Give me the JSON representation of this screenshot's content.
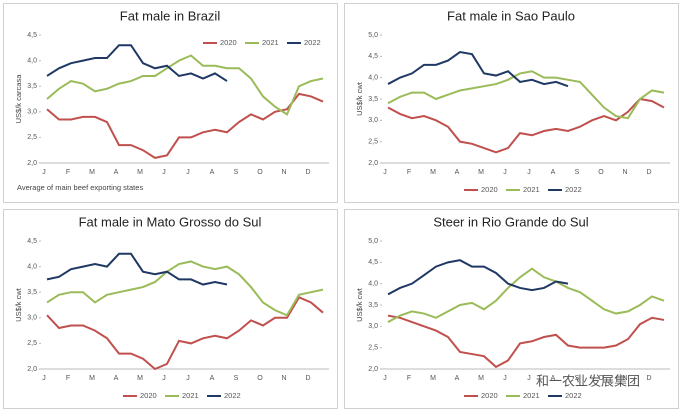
{
  "chart_data": [
    {
      "type": "line",
      "title": "Fat male in Brazil",
      "subtitle": "Average  of main beef exporting states",
      "y_label": "US$/k carcasa",
      "legend": "top",
      "categories": [
        "J",
        null,
        "F",
        null,
        "M",
        null,
        "A",
        null,
        "M",
        null,
        "J",
        null,
        "J",
        null,
        "A",
        null,
        "S",
        null,
        "O",
        null,
        "N",
        null,
        "D",
        null
      ],
      "ylim": [
        2.0,
        4.5
      ],
      "yticks": [
        {
          "value": 2.0,
          "label": "2,0"
        },
        {
          "value": 2.5,
          "label": "2,5"
        },
        {
          "value": 3.0,
          "label": "3,0"
        },
        {
          "value": 3.5,
          "label": "3,5"
        },
        {
          "value": 4.0,
          "label": "4,0"
        },
        {
          "value": 4.5,
          "label": "4,5"
        }
      ],
      "series": [
        {
          "name": "2020",
          "color": "#c0504d",
          "values": [
            3.05,
            2.85,
            2.85,
            2.9,
            2.9,
            2.8,
            2.35,
            2.35,
            2.25,
            2.1,
            2.15,
            2.5,
            2.5,
            2.6,
            2.65,
            2.6,
            2.8,
            2.95,
            2.85,
            3.0,
            3.05,
            3.35,
            3.3,
            3.2
          ]
        },
        {
          "name": "2021",
          "color": "#9bbb59",
          "values": [
            3.25,
            3.45,
            3.6,
            3.55,
            3.4,
            3.45,
            3.55,
            3.6,
            3.7,
            3.7,
            3.85,
            4.0,
            4.1,
            3.9,
            3.9,
            3.85,
            3.85,
            3.65,
            3.3,
            3.1,
            2.95,
            3.5,
            3.6,
            3.65
          ]
        },
        {
          "name": "2022",
          "color": "#1f3864",
          "values": [
            3.7,
            3.85,
            3.95,
            4.0,
            4.05,
            4.05,
            4.3,
            4.3,
            3.95,
            3.85,
            3.9,
            3.7,
            3.75,
            3.65,
            3.75,
            3.6,
            null,
            null,
            null,
            null,
            null,
            null,
            null,
            null
          ]
        }
      ]
    },
    {
      "type": "line",
      "title": "Fat male in Sao Paulo",
      "y_label": "US$/k cwt",
      "legend": "bottom",
      "categories": [
        "J",
        null,
        "F",
        null,
        "M",
        null,
        "A",
        null,
        "M",
        null,
        "J",
        null,
        "J",
        null,
        "A",
        null,
        "S",
        null,
        "O",
        null,
        "N",
        null,
        "D",
        null
      ],
      "ylim": [
        2.0,
        5.0
      ],
      "yticks": [
        {
          "value": 2.0,
          "label": "2,0"
        },
        {
          "value": 2.5,
          "label": "2,5"
        },
        {
          "value": 3.0,
          "label": "3,0"
        },
        {
          "value": 3.5,
          "label": "3,5"
        },
        {
          "value": 4.0,
          "label": "4,0"
        },
        {
          "value": 4.5,
          "label": "4,5"
        },
        {
          "value": 5.0,
          "label": "5,0"
        }
      ],
      "series": [
        {
          "name": "2020",
          "color": "#c0504d",
          "values": [
            3.3,
            3.15,
            3.05,
            3.1,
            3.0,
            2.85,
            2.5,
            2.45,
            2.35,
            2.25,
            2.35,
            2.7,
            2.65,
            2.75,
            2.8,
            2.75,
            2.85,
            3.0,
            3.1,
            3.0,
            3.2,
            3.5,
            3.45,
            3.3
          ]
        },
        {
          "name": "2021",
          "color": "#9bbb59",
          "values": [
            3.4,
            3.55,
            3.65,
            3.65,
            3.5,
            3.6,
            3.7,
            3.75,
            3.8,
            3.85,
            3.95,
            4.1,
            4.15,
            4.0,
            4.0,
            3.95,
            3.9,
            3.6,
            3.3,
            3.1,
            3.05,
            3.5,
            3.7,
            3.65
          ]
        },
        {
          "name": "2022",
          "color": "#1f3864",
          "values": [
            3.85,
            4.0,
            4.1,
            4.3,
            4.3,
            4.4,
            4.6,
            4.55,
            4.1,
            4.05,
            4.15,
            3.9,
            3.95,
            3.85,
            3.9,
            3.8,
            null,
            null,
            null,
            null,
            null,
            null,
            null,
            null
          ]
        }
      ]
    },
    {
      "type": "line",
      "title": "Fat male in Mato Grosso do Sul",
      "y_label": "US$/k cwt",
      "legend": "bottom",
      "categories": [
        "J",
        null,
        "F",
        null,
        "M",
        null,
        "A",
        null,
        "M",
        null,
        "J",
        null,
        "J",
        null,
        "A",
        null,
        "S",
        null,
        "O",
        null,
        "N",
        null,
        "D",
        null
      ],
      "ylim": [
        2.0,
        4.5
      ],
      "yticks": [
        {
          "value": 2.0,
          "label": "2,0"
        },
        {
          "value": 2.5,
          "label": "2,5"
        },
        {
          "value": 3.0,
          "label": "3,0"
        },
        {
          "value": 3.5,
          "label": "3,5"
        },
        {
          "value": 4.0,
          "label": "4,0"
        },
        {
          "value": 4.5,
          "label": "4,5"
        }
      ],
      "series": [
        {
          "name": "2020",
          "color": "#c0504d",
          "values": [
            3.05,
            2.8,
            2.85,
            2.85,
            2.75,
            2.6,
            2.3,
            2.3,
            2.2,
            2.0,
            2.1,
            2.55,
            2.5,
            2.6,
            2.65,
            2.6,
            2.75,
            2.95,
            2.85,
            3.0,
            3.0,
            3.4,
            3.3,
            3.1
          ]
        },
        {
          "name": "2021",
          "color": "#9bbb59",
          "values": [
            3.3,
            3.45,
            3.5,
            3.5,
            3.3,
            3.45,
            3.5,
            3.55,
            3.6,
            3.7,
            3.9,
            4.05,
            4.1,
            4.0,
            3.95,
            4.0,
            3.85,
            3.6,
            3.3,
            3.15,
            3.05,
            3.45,
            3.5,
            3.55
          ]
        },
        {
          "name": "2022",
          "color": "#1f3864",
          "values": [
            3.75,
            3.8,
            3.95,
            4.0,
            4.05,
            4.0,
            4.25,
            4.25,
            3.9,
            3.85,
            3.9,
            3.75,
            3.75,
            3.65,
            3.7,
            3.65,
            null,
            null,
            null,
            null,
            null,
            null,
            null,
            null
          ]
        }
      ]
    },
    {
      "type": "line",
      "title": "Steer  in Rio Grande do Sul",
      "y_label": "US$/k cwt",
      "legend": "bottom",
      "categories": [
        "J",
        null,
        "F",
        null,
        "M",
        null,
        "A",
        null,
        "M",
        null,
        "J",
        null,
        "J",
        null,
        "A",
        null,
        "S",
        null,
        "O",
        null,
        "N",
        null,
        "D",
        null
      ],
      "ylim": [
        2.0,
        5.0
      ],
      "yticks": [
        {
          "value": 2.0,
          "label": "2,0"
        },
        {
          "value": 2.5,
          "label": "2,5"
        },
        {
          "value": 3.0,
          "label": "3,0"
        },
        {
          "value": 3.5,
          "label": "3,5"
        },
        {
          "value": 4.0,
          "label": "4,0"
        },
        {
          "value": 4.5,
          "label": "4,5"
        },
        {
          "value": 5.0,
          "label": "5,0"
        }
      ],
      "series": [
        {
          "name": "2020",
          "color": "#c0504d",
          "values": [
            3.25,
            3.2,
            3.1,
            3.0,
            2.9,
            2.75,
            2.4,
            2.35,
            2.3,
            2.05,
            2.2,
            2.6,
            2.65,
            2.75,
            2.8,
            2.55,
            2.5,
            2.5,
            2.5,
            2.55,
            2.7,
            3.05,
            3.2,
            3.15
          ]
        },
        {
          "name": "2021",
          "color": "#9bbb59",
          "values": [
            3.1,
            3.25,
            3.35,
            3.3,
            3.2,
            3.35,
            3.5,
            3.55,
            3.4,
            3.6,
            3.9,
            4.15,
            4.35,
            4.15,
            4.05,
            3.9,
            3.8,
            3.6,
            3.4,
            3.3,
            3.35,
            3.5,
            3.7,
            3.6
          ]
        },
        {
          "name": "2022",
          "color": "#1f3864",
          "values": [
            3.75,
            3.9,
            4.0,
            4.2,
            4.4,
            4.5,
            4.55,
            4.4,
            4.4,
            4.25,
            4.0,
            3.9,
            3.85,
            3.9,
            4.05,
            4.0,
            null,
            null,
            null,
            null,
            null,
            null,
            null,
            null
          ]
        }
      ]
    }
  ],
  "watermark": "和一农业发展集团"
}
